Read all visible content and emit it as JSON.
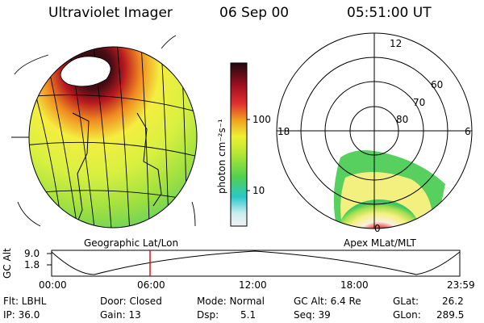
{
  "header": {
    "instrument": "Ultraviolet Imager",
    "date": "06 Sep 00",
    "time": "05:51:00 UT"
  },
  "colorbar": {
    "unit_label": "photon cm⁻²s⁻¹",
    "ticks": [
      "100",
      "10"
    ]
  },
  "polar_plot": {
    "mlt_labels": [
      "12",
      "18",
      "6",
      "0"
    ],
    "lat_labels": [
      "60",
      "70",
      "80"
    ]
  },
  "projections": {
    "left": "Geographic Lat/Lon",
    "right": "Apex MLat/MLT"
  },
  "altitude_plot": {
    "axis_label": "GC Alt",
    "y_ticks": [
      "9.0",
      "1.8"
    ],
    "x_ticks": [
      "00:00",
      "06:00",
      "12:00",
      "18:00",
      "23:59"
    ],
    "marker_time": "05:51",
    "marker_color": "#e00000"
  },
  "status": {
    "flt": "Flt: LBHL",
    "door": "Door: Closed",
    "mode": "Mode: Normal",
    "gc_alt": "GC Alt: 6.4 Re",
    "glat_label": "GLat:",
    "glat_value": "26.2",
    "ip": "IP: 36.0",
    "gain": "Gain: 13",
    "dsp_label": "Dsp:",
    "dsp_value": "5.1",
    "seq": "Seq: 39",
    "glon_label": "GLon:",
    "glon_value": "289.5"
  }
}
